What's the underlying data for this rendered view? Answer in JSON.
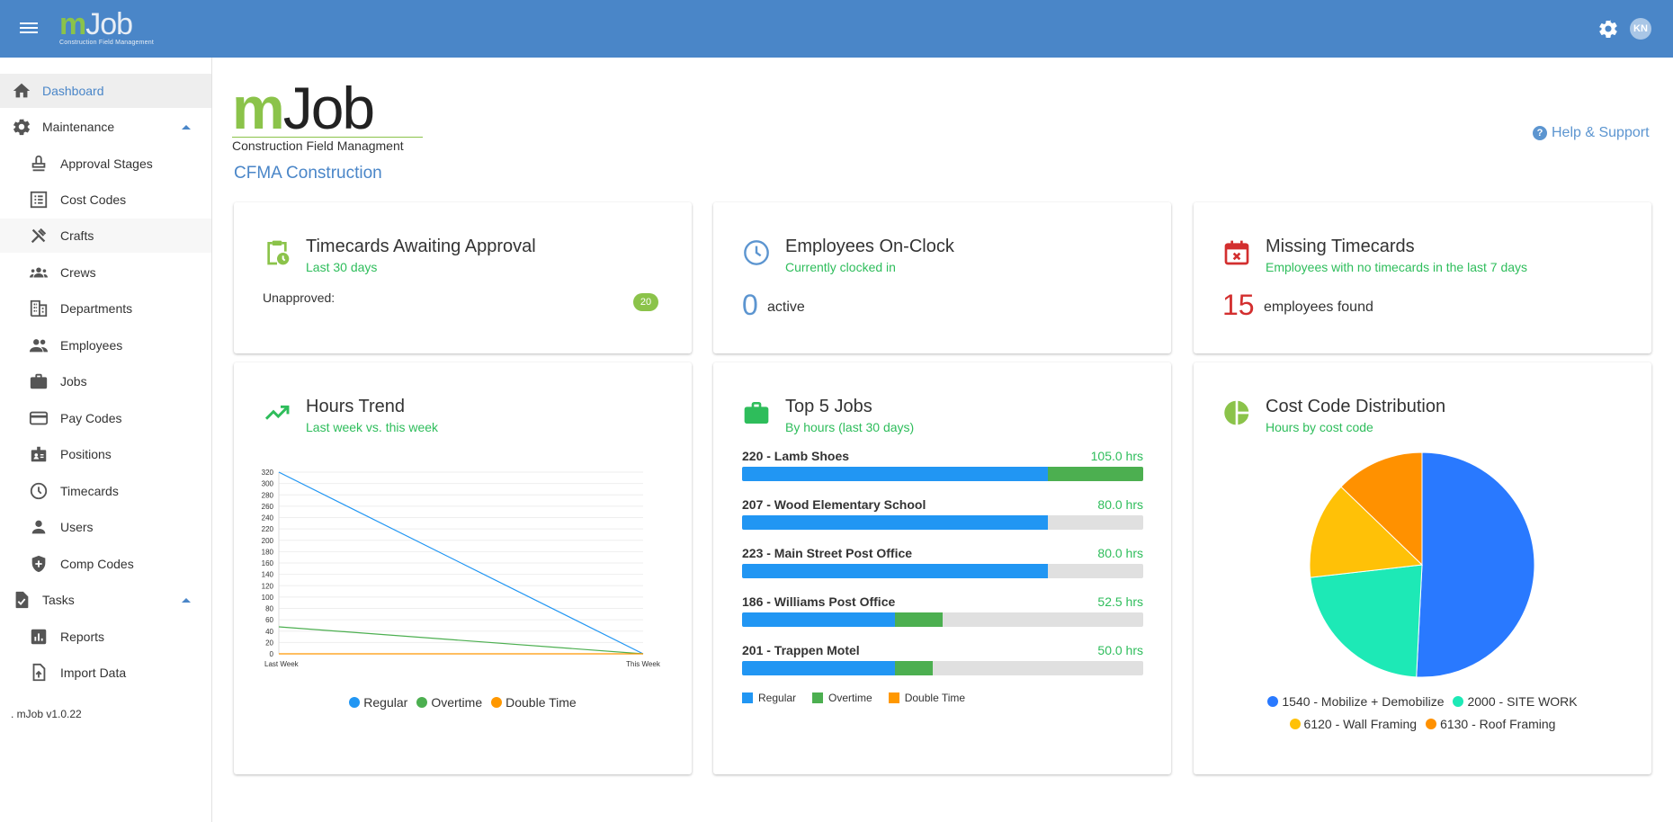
{
  "header": {
    "logo_m": "m",
    "logo_job": "Job",
    "logo_sub": "Construction Field Management",
    "avatar_initials": "KN",
    "settings_icon": "gear-icon",
    "menu_icon": "hamburger-icon"
  },
  "sidebar": {
    "items": [
      {
        "label": "Dashboard",
        "icon": "home-icon"
      },
      {
        "label": "Maintenance",
        "icon": "gear-icon"
      },
      {
        "label": "Approval Stages",
        "icon": "stamp-icon"
      },
      {
        "label": "Cost Codes",
        "icon": "list-icon"
      },
      {
        "label": "Crafts",
        "icon": "tools-icon"
      },
      {
        "label": "Crews",
        "icon": "group-icon"
      },
      {
        "label": "Departments",
        "icon": "building-icon"
      },
      {
        "label": "Employees",
        "icon": "people-icon"
      },
      {
        "label": "Jobs",
        "icon": "briefcase-icon"
      },
      {
        "label": "Pay Codes",
        "icon": "card-icon"
      },
      {
        "label": "Positions",
        "icon": "badge-icon"
      },
      {
        "label": "Timecards",
        "icon": "clock-icon"
      },
      {
        "label": "Users",
        "icon": "person-icon"
      },
      {
        "label": "Comp Codes",
        "icon": "shield-icon"
      },
      {
        "label": "Tasks",
        "icon": "task-icon"
      },
      {
        "label": "Reports",
        "icon": "chart-icon"
      },
      {
        "label": "Import Data",
        "icon": "upload-icon"
      }
    ],
    "version": ". mJob v1.0.22"
  },
  "main": {
    "logo_m": "m",
    "logo_job": "Job",
    "logo_sub": "Construction Field Managment",
    "company": "CFMA Construction",
    "help_label": "Help & Support"
  },
  "cards": {
    "timecards": {
      "title": "Timecards Awaiting Approval",
      "subtitle": "Last 30 days",
      "label": "Unapproved:",
      "count": "20"
    },
    "onclock": {
      "title": "Employees On-Clock",
      "subtitle": "Currently clocked in",
      "count": "0",
      "label": "active"
    },
    "missing": {
      "title": "Missing Timecards",
      "subtitle": "Employees with no timecards in the last 7 days",
      "count": "15",
      "label": "employees found"
    },
    "trend": {
      "title": "Hours Trend",
      "subtitle": "Last week vs. this week"
    },
    "topjobs": {
      "title": "Top 5 Jobs",
      "subtitle": "By hours (last 30 days)"
    },
    "costcode": {
      "title": "Cost Code Distribution",
      "subtitle": "Hours by cost code"
    }
  },
  "top_jobs": {
    "jobs": [
      {
        "name": "220 - Lamb Shoes",
        "hours": "105.0 hrs",
        "total": 105.0,
        "regular": 80.0,
        "overtime": 25.0,
        "double": 0
      },
      {
        "name": "207 - Wood Elementary School",
        "hours": "80.0 hrs",
        "total": 80.0,
        "regular": 80.0,
        "overtime": 0,
        "double": 0
      },
      {
        "name": "223 - Main Street Post Office",
        "hours": "80.0 hrs",
        "total": 80.0,
        "regular": 80.0,
        "overtime": 0,
        "double": 0
      },
      {
        "name": "186 - Williams Post Office",
        "hours": "52.5 hrs",
        "total": 52.5,
        "regular": 40.0,
        "overtime": 12.5,
        "double": 0
      },
      {
        "name": "201 - Trappen Motel",
        "hours": "50.0 hrs",
        "total": 50.0,
        "regular": 40.0,
        "overtime": 10.0,
        "double": 0
      }
    ],
    "max": 105.0,
    "legend": [
      "Regular",
      "Overtime",
      "Double Time"
    ],
    "colors": {
      "regular": "#2196f3",
      "overtime": "#4caf50",
      "double": "#ff9800"
    }
  },
  "chart_data": [
    {
      "type": "line",
      "x": [
        "Last Week",
        "This Week"
      ],
      "series": [
        {
          "name": "Regular",
          "values": [
            320,
            0
          ],
          "color": "#2196f3"
        },
        {
          "name": "Overtime",
          "values": [
            47.5,
            0
          ],
          "color": "#4caf50"
        },
        {
          "name": "Double Time",
          "values": [
            0,
            0
          ],
          "color": "#ff9800"
        }
      ],
      "ylim": [
        0,
        320
      ],
      "yticks": [
        0,
        20,
        40,
        60,
        80,
        100,
        120,
        140,
        160,
        180,
        200,
        220,
        240,
        260,
        280,
        300,
        320
      ],
      "grid": true,
      "legend_position": "bottom"
    },
    {
      "type": "pie",
      "series": [
        {
          "name": "1540 - Mobilize + Demobilize",
          "value": 50.8,
          "color": "#2979ff"
        },
        {
          "name": "2000 - SITE WORK",
          "value": 22.4,
          "color": "#1de9b6"
        },
        {
          "name": "6120 - Wall Framing",
          "value": 14.0,
          "color": "#ffc107"
        },
        {
          "name": "6130 - Roof Framing",
          "value": 12.8,
          "color": "#ff9100"
        }
      ],
      "legend_position": "bottom"
    }
  ]
}
